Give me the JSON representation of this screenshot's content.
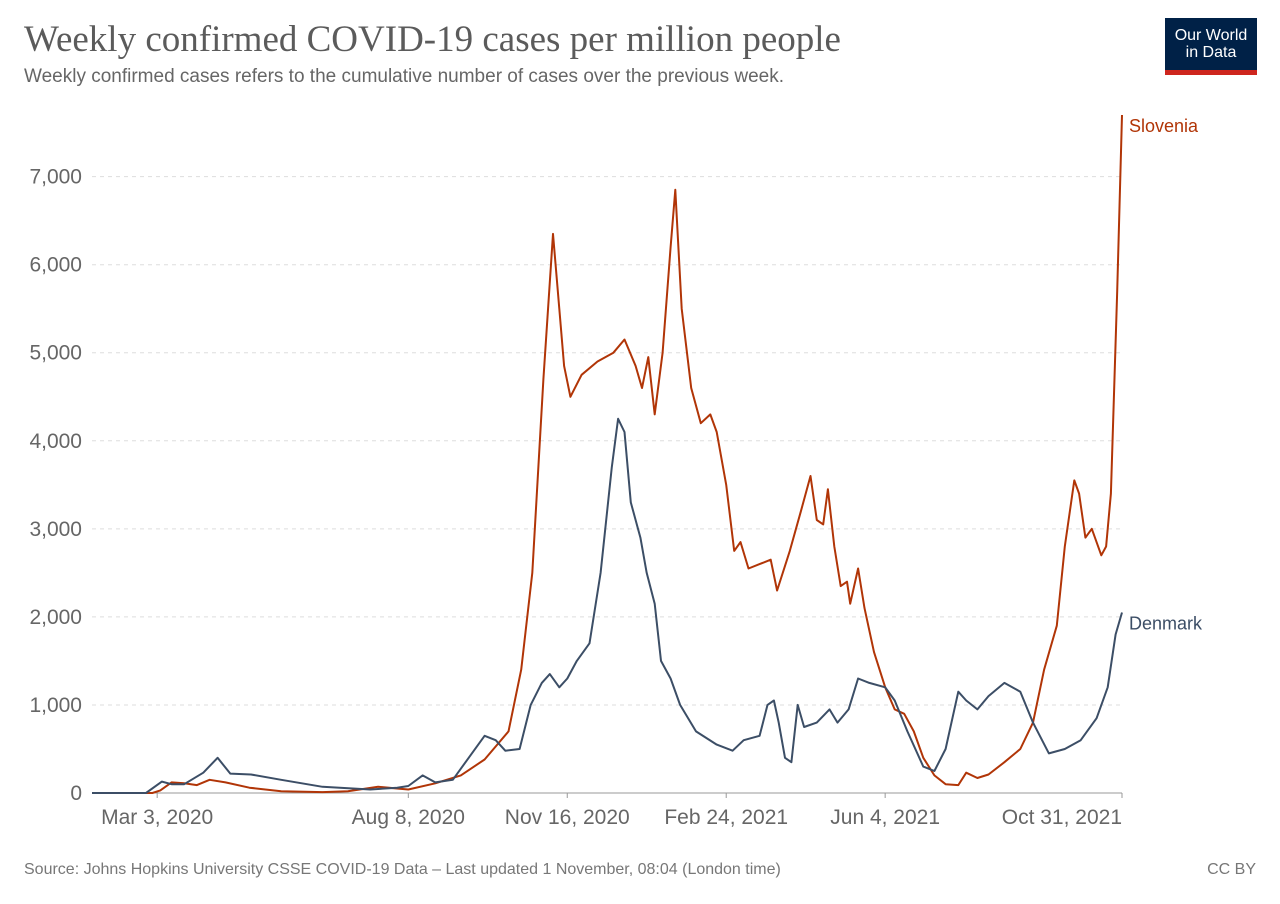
{
  "header": {
    "title": "Weekly confirmed COVID-19 cases per million people",
    "subtitle": "Weekly confirmed cases refers to the cumulative number of cases over the previous week."
  },
  "logo": {
    "line1": "Our World",
    "line2": "in Data",
    "bg_color": "#002147",
    "bar_color": "#ce261e"
  },
  "footer": {
    "source": "Source: Johns Hopkins University CSSE COVID-19 Data – Last updated 1 November, 08:04 (London time)",
    "license": "CC BY"
  },
  "chart_data": {
    "type": "line",
    "title": "Weekly confirmed COVID-19 cases per million people",
    "xlabel": "",
    "ylabel": "",
    "x_range": [
      "2020-01-22",
      "2021-10-31"
    ],
    "ylim": [
      0,
      7700
    ],
    "grid": "horizontal dashed",
    "y_ticks": [
      {
        "value": 0,
        "label": "0"
      },
      {
        "value": 1000,
        "label": "1,000"
      },
      {
        "value": 2000,
        "label": "2,000"
      },
      {
        "value": 3000,
        "label": "3,000"
      },
      {
        "value": 4000,
        "label": "4,000"
      },
      {
        "value": 5000,
        "label": "5,000"
      },
      {
        "value": 6000,
        "label": "6,000"
      },
      {
        "value": 7000,
        "label": "7,000"
      }
    ],
    "x_ticks": [
      {
        "date": "2020-03-03",
        "label": "Mar 3, 2020"
      },
      {
        "date": "2020-08-08",
        "label": "Aug 8, 2020"
      },
      {
        "date": "2020-11-16",
        "label": "Nov 16, 2020"
      },
      {
        "date": "2021-02-24",
        "label": "Feb 24, 2021"
      },
      {
        "date": "2021-06-04",
        "label": "Jun 4, 2021"
      },
      {
        "date": "2021-10-31",
        "label": "Oct 31, 2021"
      }
    ],
    "series": [
      {
        "name": "Slovenia",
        "color": "#b13507",
        "points": [
          [
            "2020-01-22",
            0
          ],
          [
            "2020-02-29",
            0
          ],
          [
            "2020-03-05",
            30
          ],
          [
            "2020-03-12",
            120
          ],
          [
            "2020-03-20",
            110
          ],
          [
            "2020-03-28",
            90
          ],
          [
            "2020-04-05",
            150
          ],
          [
            "2020-04-15",
            120
          ],
          [
            "2020-04-30",
            60
          ],
          [
            "2020-05-20",
            20
          ],
          [
            "2020-06-15",
            10
          ],
          [
            "2020-07-01",
            20
          ],
          [
            "2020-07-20",
            70
          ],
          [
            "2020-08-08",
            40
          ],
          [
            "2020-08-25",
            110
          ],
          [
            "2020-09-10",
            200
          ],
          [
            "2020-09-25",
            380
          ],
          [
            "2020-10-10",
            700
          ],
          [
            "2020-10-18",
            1400
          ],
          [
            "2020-10-25",
            2500
          ],
          [
            "2020-11-01",
            4700
          ],
          [
            "2020-11-07",
            6350
          ],
          [
            "2020-11-11",
            5500
          ],
          [
            "2020-11-14",
            4850
          ],
          [
            "2020-11-18",
            4500
          ],
          [
            "2020-11-25",
            4750
          ],
          [
            "2020-12-05",
            4900
          ],
          [
            "2020-12-15",
            5000
          ],
          [
            "2020-12-22",
            5150
          ],
          [
            "2020-12-29",
            4850
          ],
          [
            "2021-01-02",
            4600
          ],
          [
            "2021-01-06",
            4950
          ],
          [
            "2021-01-10",
            4300
          ],
          [
            "2021-01-15",
            5000
          ],
          [
            "2021-01-20",
            6200
          ],
          [
            "2021-01-23",
            6850
          ],
          [
            "2021-01-27",
            5500
          ],
          [
            "2021-02-02",
            4600
          ],
          [
            "2021-02-08",
            4200
          ],
          [
            "2021-02-14",
            4300
          ],
          [
            "2021-02-18",
            4100
          ],
          [
            "2021-02-24",
            3500
          ],
          [
            "2021-03-01",
            2750
          ],
          [
            "2021-03-05",
            2850
          ],
          [
            "2021-03-10",
            2550
          ],
          [
            "2021-03-17",
            2600
          ],
          [
            "2021-03-24",
            2650
          ],
          [
            "2021-03-28",
            2300
          ],
          [
            "2021-04-05",
            2750
          ],
          [
            "2021-04-12",
            3200
          ],
          [
            "2021-04-18",
            3600
          ],
          [
            "2021-04-22",
            3100
          ],
          [
            "2021-04-26",
            3050
          ],
          [
            "2021-04-29",
            3450
          ],
          [
            "2021-05-03",
            2800
          ],
          [
            "2021-05-07",
            2350
          ],
          [
            "2021-05-11",
            2400
          ],
          [
            "2021-05-13",
            2150
          ],
          [
            "2021-05-18",
            2550
          ],
          [
            "2021-05-22",
            2100
          ],
          [
            "2021-05-28",
            1600
          ],
          [
            "2021-06-04",
            1200
          ],
          [
            "2021-06-10",
            950
          ],
          [
            "2021-06-16",
            900
          ],
          [
            "2021-06-22",
            700
          ],
          [
            "2021-06-28",
            400
          ],
          [
            "2021-07-05",
            200
          ],
          [
            "2021-07-12",
            100
          ],
          [
            "2021-07-20",
            90
          ],
          [
            "2021-07-25",
            230
          ],
          [
            "2021-08-01",
            170
          ],
          [
            "2021-08-08",
            210
          ],
          [
            "2021-08-18",
            350
          ],
          [
            "2021-08-28",
            500
          ],
          [
            "2021-09-05",
            800
          ],
          [
            "2021-09-12",
            1400
          ],
          [
            "2021-09-20",
            1900
          ],
          [
            "2021-09-25",
            2800
          ],
          [
            "2021-10-01",
            3550
          ],
          [
            "2021-10-04",
            3400
          ],
          [
            "2021-10-08",
            2900
          ],
          [
            "2021-10-12",
            3000
          ],
          [
            "2021-10-18",
            2700
          ],
          [
            "2021-10-21",
            2800
          ],
          [
            "2021-10-24",
            3400
          ],
          [
            "2021-10-28",
            5700
          ],
          [
            "2021-10-31",
            7700
          ]
        ]
      },
      {
        "name": "Denmark",
        "color": "#3c4e66",
        "points": [
          [
            "2020-01-22",
            0
          ],
          [
            "2020-02-25",
            0
          ],
          [
            "2020-03-06",
            130
          ],
          [
            "2020-03-12",
            100
          ],
          [
            "2020-03-20",
            100
          ],
          [
            "2020-04-01",
            230
          ],
          [
            "2020-04-10",
            400
          ],
          [
            "2020-04-18",
            220
          ],
          [
            "2020-05-01",
            210
          ],
          [
            "2020-05-20",
            150
          ],
          [
            "2020-06-15",
            70
          ],
          [
            "2020-07-15",
            40
          ],
          [
            "2020-08-01",
            60
          ],
          [
            "2020-08-08",
            80
          ],
          [
            "2020-08-17",
            200
          ],
          [
            "2020-08-25",
            120
          ],
          [
            "2020-09-05",
            150
          ],
          [
            "2020-09-15",
            400
          ],
          [
            "2020-09-25",
            650
          ],
          [
            "2020-10-02",
            600
          ],
          [
            "2020-10-08",
            480
          ],
          [
            "2020-10-17",
            500
          ],
          [
            "2020-10-24",
            1000
          ],
          [
            "2020-10-31",
            1250
          ],
          [
            "2020-11-05",
            1350
          ],
          [
            "2020-11-11",
            1200
          ],
          [
            "2020-11-16",
            1300
          ],
          [
            "2020-11-22",
            1500
          ],
          [
            "2020-11-30",
            1700
          ],
          [
            "2020-12-07",
            2500
          ],
          [
            "2020-12-14",
            3700
          ],
          [
            "2020-12-18",
            4250
          ],
          [
            "2020-12-22",
            4100
          ],
          [
            "2020-12-26",
            3300
          ],
          [
            "2021-01-01",
            2900
          ],
          [
            "2021-01-05",
            2500
          ],
          [
            "2021-01-10",
            2150
          ],
          [
            "2021-01-14",
            1500
          ],
          [
            "2021-01-20",
            1300
          ],
          [
            "2021-01-26",
            1000
          ],
          [
            "2021-02-05",
            700
          ],
          [
            "2021-02-18",
            550
          ],
          [
            "2021-02-28",
            480
          ],
          [
            "2021-03-07",
            600
          ],
          [
            "2021-03-17",
            650
          ],
          [
            "2021-03-22",
            1000
          ],
          [
            "2021-03-26",
            1050
          ],
          [
            "2021-03-29",
            800
          ],
          [
            "2021-04-02",
            400
          ],
          [
            "2021-04-06",
            350
          ],
          [
            "2021-04-10",
            1000
          ],
          [
            "2021-04-14",
            750
          ],
          [
            "2021-04-22",
            800
          ],
          [
            "2021-04-30",
            950
          ],
          [
            "2021-05-05",
            800
          ],
          [
            "2021-05-12",
            950
          ],
          [
            "2021-05-18",
            1300
          ],
          [
            "2021-05-25",
            1250
          ],
          [
            "2021-06-04",
            1200
          ],
          [
            "2021-06-10",
            1050
          ],
          [
            "2021-06-18",
            700
          ],
          [
            "2021-06-28",
            300
          ],
          [
            "2021-07-05",
            250
          ],
          [
            "2021-07-12",
            500
          ],
          [
            "2021-07-20",
            1150
          ],
          [
            "2021-07-25",
            1050
          ],
          [
            "2021-08-01",
            950
          ],
          [
            "2021-08-08",
            1100
          ],
          [
            "2021-08-18",
            1250
          ],
          [
            "2021-08-28",
            1150
          ],
          [
            "2021-09-05",
            800
          ],
          [
            "2021-09-15",
            450
          ],
          [
            "2021-09-25",
            500
          ],
          [
            "2021-10-05",
            600
          ],
          [
            "2021-10-15",
            850
          ],
          [
            "2021-10-22",
            1200
          ],
          [
            "2021-10-27",
            1800
          ],
          [
            "2021-10-31",
            2050
          ]
        ]
      }
    ]
  }
}
